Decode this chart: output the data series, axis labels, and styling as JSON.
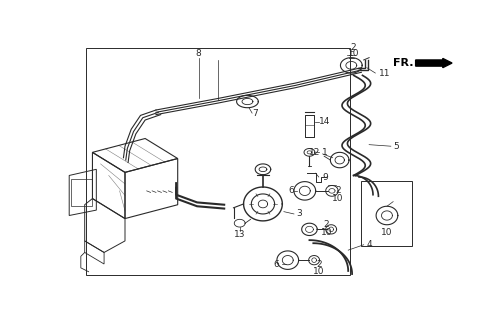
{
  "bg_color": "#ffffff",
  "line_color": "#2a2a2a",
  "fig_width": 5.04,
  "fig_height": 3.2,
  "dpi": 100
}
